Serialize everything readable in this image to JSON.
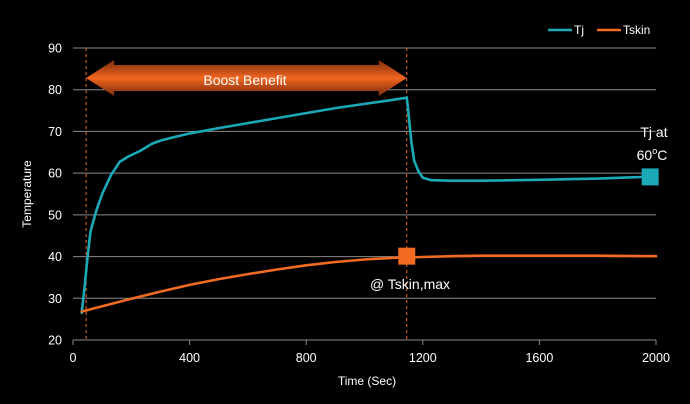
{
  "chart_data": {
    "type": "line",
    "title": "",
    "xlabel": "Time (Sec)",
    "ylabel": "Temperature",
    "xlim": [
      0,
      2000
    ],
    "ylim": [
      20,
      90
    ],
    "xticks": [
      0,
      400,
      800,
      1200,
      1600,
      2000
    ],
    "yticks": [
      20,
      30,
      40,
      50,
      60,
      70,
      80,
      90
    ],
    "grid": "horizontal",
    "legend_position": "top-right",
    "series": [
      {
        "name": "Tj",
        "color": "#1ba9b8",
        "x": [
          30,
          40,
          50,
          60,
          80,
          100,
          130,
          160,
          190,
          230,
          270,
          300,
          350,
          400,
          500,
          600,
          700,
          800,
          900,
          1000,
          1100,
          1145,
          1150,
          1160,
          1170,
          1185,
          1200,
          1230,
          1300,
          1400,
          1600,
          1800,
          2000
        ],
        "y": [
          26.5,
          33,
          40,
          46,
          51,
          55,
          59.5,
          62.7,
          64,
          65.3,
          67,
          67.8,
          68.7,
          69.5,
          70.8,
          72,
          73.2,
          74.4,
          75.6,
          76.6,
          77.6,
          78.1,
          75,
          68,
          63,
          60.5,
          58.9,
          58.3,
          58.2,
          58.2,
          58.4,
          58.7,
          59.2
        ]
      },
      {
        "name": "Tskin",
        "color": "#f26b21",
        "x": [
          30,
          100,
          200,
          300,
          400,
          500,
          600,
          700,
          800,
          900,
          1000,
          1100,
          1200,
          1300,
          1400,
          1600,
          1800,
          2000
        ],
        "y": [
          26.8,
          28.1,
          29.9,
          31.6,
          33.2,
          34.6,
          35.8,
          36.9,
          37.9,
          38.7,
          39.3,
          39.7,
          39.9,
          40.1,
          40.2,
          40.2,
          40.2,
          40.1
        ]
      }
    ],
    "markers": [
      {
        "series": "Tskin",
        "x": 1145,
        "y": 40.1,
        "color": "#f26b21"
      },
      {
        "series": "Tj",
        "x": 1980,
        "y": 59.1,
        "color": "#1ba9b8"
      }
    ],
    "vlines": [
      45,
      1145
    ],
    "arrow_span": [
      45,
      1145
    ],
    "annotations": {
      "boost": "Boost Benefit",
      "tskin": "@ Tskin,max",
      "tj_line1": "Tj at",
      "tj_line2_base": "60",
      "tj_line2_sup": "o",
      "tj_line2_unit": "C"
    }
  }
}
